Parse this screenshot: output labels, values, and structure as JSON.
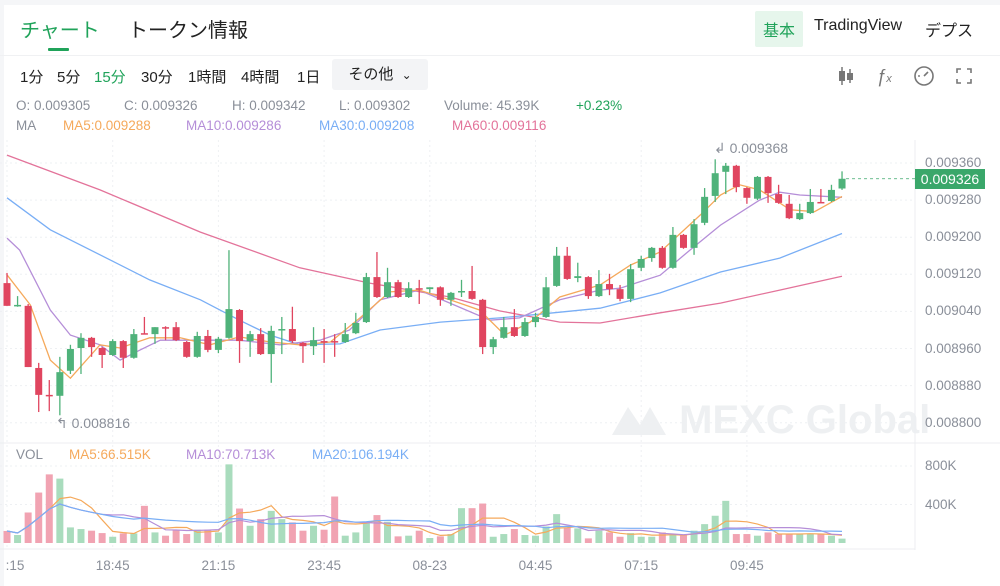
{
  "header": {
    "tabs": [
      {
        "label": "チャート",
        "active": true
      },
      {
        "label": "トークン情報",
        "active": false
      }
    ],
    "views": [
      {
        "label": "基本",
        "active": true
      },
      {
        "label": "TradingView",
        "active": false
      },
      {
        "label": "デプス",
        "active": false
      }
    ]
  },
  "toolbar": {
    "timeframes": [
      {
        "label": "1分"
      },
      {
        "label": "5分"
      },
      {
        "label": "15分",
        "active": true
      },
      {
        "label": "30分"
      },
      {
        "label": "1時間"
      },
      {
        "label": "4時間"
      },
      {
        "label": "1日"
      }
    ],
    "more_label": "その他",
    "icons": [
      "candlestick-type-icon",
      "indicator-fx-icon",
      "gauge-settings-icon",
      "fullscreen-icon"
    ]
  },
  "ohlc_info": {
    "open": "O: 0.009305",
    "close": "C: 0.009326",
    "high": "H: 0.009342",
    "low": "L: 0.009302",
    "volume": "Volume: 45.39K",
    "change": "+0.23%"
  },
  "ma_legend": {
    "label": "MA",
    "ma5": "MA5:0.009288",
    "ma10": "MA10:0.009286",
    "ma30": "MA30:0.009208",
    "ma60": "MA60:0.009116"
  },
  "vol_legend": {
    "label": "VOL",
    "ma5": "MA5:66.515K",
    "ma10": "MA10:70.713K",
    "ma20": "MA20:106.194K"
  },
  "colors": {
    "up": "#4fb27a",
    "down": "#e0455f",
    "accent": "#20a35a",
    "ma5": "#f5a95b",
    "ma10": "#b58ed8",
    "ma30": "#79aef5",
    "ma60": "#e3739a",
    "vol_up": "#a9dcbd",
    "vol_down": "#f1a3b2"
  },
  "watermark": "MEXC Global",
  "chart_data": {
    "type": "candlestick",
    "interval": "15分",
    "price_ticks": [
      "0.009360",
      "0.009280",
      "0.009200",
      "0.009120",
      "0.009040",
      "0.008960",
      "0.008880",
      "0.008800"
    ],
    "current_price": "0.009326",
    "max_label": "0.009368",
    "min_label": "0.008816",
    "volume_ticks": [
      "800K",
      "400K"
    ],
    "time_labels": [
      ":15",
      "18:45",
      "21:15",
      "23:45",
      "08-23",
      "04:45",
      "07:15",
      "09:45"
    ],
    "candles_ohlc": [
      [
        0.009101,
        0.009123,
        0.009052,
        0.009052
      ],
      [
        0.009052,
        0.009073,
        0.00905,
        0.009054
      ],
      [
        0.009052,
        0.009056,
        0.00892,
        0.00892
      ],
      [
        0.008918,
        0.008929,
        0.008823,
        0.00886
      ],
      [
        0.00886,
        0.008892,
        0.008825,
        0.008858
      ],
      [
        0.008858,
        0.008942,
        0.008816,
        0.008909
      ],
      [
        0.008912,
        0.008968,
        0.008905,
        0.008959
      ],
      [
        0.008961,
        0.008993,
        0.008905,
        0.008983
      ],
      [
        0.008983,
        0.008985,
        0.008942,
        0.008963
      ],
      [
        0.008961,
        0.008963,
        0.008918,
        0.008946
      ],
      [
        0.008946,
        0.00898,
        0.008944,
        0.008976
      ],
      [
        0.008976,
        0.008978,
        0.008918,
        0.00894
      ],
      [
        0.00894,
        0.009002,
        0.008938,
        0.008991
      ],
      [
        0.008993,
        0.009028,
        0.008991,
        0.008991
      ],
      [
        0.008991,
        0.009006,
        0.00897,
        0.009006
      ],
      [
        0.009006,
        0.009008,
        0.008978,
        0.009004
      ],
      [
        0.009006,
        0.009017,
        0.008976,
        0.008978
      ],
      [
        0.008974,
        0.008976,
        0.00894,
        0.008942
      ],
      [
        0.008942,
        0.008996,
        0.00894,
        0.008987
      ],
      [
        0.008987,
        0.009,
        0.008952,
        0.008957
      ],
      [
        0.008957,
        0.008985,
        0.00895,
        0.008981
      ],
      [
        0.008983,
        0.009172,
        0.008981,
        0.009045
      ],
      [
        0.009043,
        0.009045,
        0.008929,
        0.008976
      ],
      [
        0.008976,
        0.008998,
        0.008942,
        0.008991
      ],
      [
        0.008991,
        0.009004,
        0.008946,
        0.008948
      ],
      [
        0.008948,
        0.009009,
        0.008886,
        0.008998
      ],
      [
        0.008999,
        0.009028,
        0.008948,
        0.009002
      ],
      [
        0.009002,
        0.00905,
        0.008972,
        0.008976
      ],
      [
        0.008972,
        0.008974,
        0.008929,
        0.008965
      ],
      [
        0.008965,
        0.009006,
        0.008946,
        0.008978
      ],
      [
        0.008976,
        0.009002,
        0.008929,
        0.008974
      ],
      [
        0.008976,
        0.008991,
        0.008942,
        0.008974
      ],
      [
        0.008974,
        0.009015,
        0.008972,
        0.008991
      ],
      [
        0.008993,
        0.009037,
        0.008991,
        0.009015
      ],
      [
        0.009017,
        0.009123,
        0.009015,
        0.009114
      ],
      [
        0.009114,
        0.009168,
        0.009069,
        0.009071
      ],
      [
        0.009071,
        0.009134,
        0.009069,
        0.009103
      ],
      [
        0.009103,
        0.009108,
        0.009069,
        0.009071
      ],
      [
        0.009071,
        0.009103,
        0.009069,
        0.00909
      ],
      [
        0.00909,
        0.009108,
        0.009056,
        0.009088
      ],
      [
        0.009088,
        0.009092,
        0.00908,
        0.009092
      ],
      [
        0.009092,
        0.009094,
        0.009052,
        0.009065
      ],
      [
        0.009065,
        0.009082,
        0.009052,
        0.00908
      ],
      [
        0.009082,
        0.009108,
        0.009071,
        0.009084
      ],
      [
        0.009084,
        0.009138,
        0.009065,
        0.009067
      ],
      [
        0.009065,
        0.009067,
        0.008948,
        0.008963
      ],
      [
        0.008963,
        0.008985,
        0.008948,
        0.00898
      ],
      [
        0.008983,
        0.009028,
        0.008981,
        0.009006
      ],
      [
        0.009006,
        0.009045,
        0.008985,
        0.008987
      ],
      [
        0.008987,
        0.009026,
        0.008985,
        0.009017
      ],
      [
        0.009017,
        0.009037,
        0.009006,
        0.009028
      ],
      [
        0.009028,
        0.009114,
        0.009026,
        0.009092
      ],
      [
        0.009095,
        0.009179,
        0.009093,
        0.00916
      ],
      [
        0.00916,
        0.009179,
        0.009108,
        0.00911
      ],
      [
        0.009112,
        0.009145,
        0.009103,
        0.009116
      ],
      [
        0.009114,
        0.009116,
        0.009067,
        0.009073
      ],
      [
        0.009073,
        0.009129,
        0.009071,
        0.009099
      ],
      [
        0.009099,
        0.009121,
        0.009075,
        0.009088
      ],
      [
        0.009088,
        0.009097,
        0.009062,
        0.009067
      ],
      [
        0.009067,
        0.009142,
        0.00906,
        0.009131
      ],
      [
        0.009134,
        0.00916,
        0.009127,
        0.009153
      ],
      [
        0.009155,
        0.009179,
        0.009147,
        0.009177
      ],
      [
        0.009177,
        0.009181,
        0.009132,
        0.009134
      ],
      [
        0.009134,
        0.009222,
        0.009132,
        0.009205
      ],
      [
        0.009205,
        0.009207,
        0.009175,
        0.009177
      ],
      [
        0.009177,
        0.009239,
        0.009162,
        0.009228
      ],
      [
        0.009231,
        0.009306,
        0.009226,
        0.009287
      ],
      [
        0.009289,
        0.009368,
        0.009276,
        0.009338
      ],
      [
        0.009341,
        0.00936,
        0.009293,
        0.009354
      ],
      [
        0.009354,
        0.009356,
        0.009297,
        0.009308
      ],
      [
        0.009306,
        0.009308,
        0.009272,
        0.009285
      ],
      [
        0.009283,
        0.009332,
        0.00928,
        0.00933
      ],
      [
        0.00933,
        0.009332,
        0.009274,
        0.009295
      ],
      [
        0.009293,
        0.009313,
        0.009272,
        0.009274
      ],
      [
        0.009272,
        0.009291,
        0.009239,
        0.009241
      ],
      [
        0.009239,
        0.009272,
        0.009237,
        0.009252
      ],
      [
        0.009252,
        0.009304,
        0.00925,
        0.009276
      ],
      [
        0.009276,
        0.009304,
        0.009274,
        0.009274
      ],
      [
        0.009278,
        0.009313,
        0.009276,
        0.009302
      ],
      [
        0.009305,
        0.009342,
        0.009302,
        0.009326
      ]
    ],
    "volumes_k": [
      125,
      83,
      317,
      524,
      713,
      669,
      162,
      145,
      128,
      103,
      65,
      100,
      100,
      386,
      110,
      76,
      138,
      93,
      138,
      138,
      110,
      817,
      358,
      179,
      248,
      334,
      248,
      214,
      128,
      179,
      138,
      483,
      76,
      110,
      214,
      290,
      221,
      69,
      76,
      128,
      52,
      69,
      93,
      362,
      362,
      410,
      65,
      93,
      145,
      83,
      76,
      172,
      300,
      162,
      152,
      48,
      128,
      110,
      65,
      103,
      65,
      65,
      110,
      86,
      86,
      128,
      196,
      283,
      438,
      93,
      93,
      76,
      110,
      93,
      93,
      93,
      93,
      93,
      76,
      45.39
    ],
    "ma_lines": {
      "ma5": [
        [
          0,
          0.009119
        ],
        [
          2.2,
          0.009054
        ],
        [
          4.1,
          0.008935
        ],
        [
          6,
          0.008896
        ],
        [
          8.8,
          0.008968
        ],
        [
          10.7,
          0.008961
        ],
        [
          13.5,
          0.008983
        ],
        [
          16.4,
          0.008983
        ],
        [
          19.2,
          0.008968
        ],
        [
          22,
          0.008985
        ],
        [
          24.9,
          0.008974
        ],
        [
          27.7,
          0.008968
        ],
        [
          30.6,
          0.008974
        ],
        [
          33.4,
          0.009026
        ],
        [
          36.2,
          0.009082
        ],
        [
          39,
          0.009086
        ],
        [
          41.9,
          0.009065
        ],
        [
          44.7,
          0.009043
        ],
        [
          47.1,
          0.008989
        ],
        [
          49.5,
          0.009017
        ],
        [
          52.3,
          0.009071
        ],
        [
          56.1,
          0.009097
        ],
        [
          59,
          0.00914
        ],
        [
          61.8,
          0.009168
        ],
        [
          65.6,
          0.009248
        ],
        [
          67.5,
          0.009291
        ],
        [
          69.3,
          0.009313
        ],
        [
          71.2,
          0.009302
        ],
        [
          74.1,
          0.009259
        ],
        [
          76.4,
          0.009255
        ],
        [
          79,
          0.009288
        ]
      ],
      "ma10": [
        [
          0,
          0.009198
        ],
        [
          1.2,
          0.009172
        ],
        [
          4.1,
          0.009043
        ],
        [
          6,
          0.008989
        ],
        [
          8.8,
          0.008968
        ],
        [
          10.7,
          0.008935
        ],
        [
          12.6,
          0.008957
        ],
        [
          14.5,
          0.008978
        ],
        [
          18.3,
          0.008978
        ],
        [
          22,
          0.008978
        ],
        [
          25.8,
          0.008968
        ],
        [
          29.6,
          0.008978
        ],
        [
          32.4,
          0.009
        ],
        [
          35.3,
          0.009065
        ],
        [
          39,
          0.009086
        ],
        [
          41.9,
          0.009058
        ],
        [
          45.7,
          0.009021
        ],
        [
          48.5,
          0.009026
        ],
        [
          52.3,
          0.009065
        ],
        [
          56.1,
          0.009086
        ],
        [
          58,
          0.00909
        ],
        [
          61.8,
          0.009118
        ],
        [
          64.6,
          0.009172
        ],
        [
          67.5,
          0.009226
        ],
        [
          71.2,
          0.00928
        ],
        [
          73.1,
          0.009297
        ],
        [
          75,
          0.009291
        ],
        [
          79,
          0.009286
        ]
      ],
      "ma30": [
        [
          0,
          0.009285
        ],
        [
          4.1,
          0.009216
        ],
        [
          8.8,
          0.009162
        ],
        [
          13.5,
          0.009108
        ],
        [
          18.3,
          0.009065
        ],
        [
          22,
          0.009021
        ],
        [
          24.9,
          0.008989
        ],
        [
          27.7,
          0.008968
        ],
        [
          31.5,
          0.00897
        ],
        [
          35.3,
          0.009
        ],
        [
          41,
          0.009017
        ],
        [
          46.6,
          0.009026
        ],
        [
          50.4,
          0.009034
        ],
        [
          56.1,
          0.009047
        ],
        [
          61.8,
          0.00908
        ],
        [
          67.5,
          0.009125
        ],
        [
          73.1,
          0.009155
        ],
        [
          79,
          0.009208
        ]
      ],
      "ma60": [
        [
          0,
          0.009377
        ],
        [
          8.8,
          0.009302
        ],
        [
          18.3,
          0.009211
        ],
        [
          27.7,
          0.009134
        ],
        [
          34.3,
          0.009101
        ],
        [
          41.9,
          0.009071
        ],
        [
          46.6,
          0.009041
        ],
        [
          52.3,
          0.009017
        ],
        [
          56.1,
          0.009015
        ],
        [
          61.8,
          0.009037
        ],
        [
          67.5,
          0.009058
        ],
        [
          73.1,
          0.009086
        ],
        [
          79,
          0.009116
        ]
      ]
    }
  }
}
